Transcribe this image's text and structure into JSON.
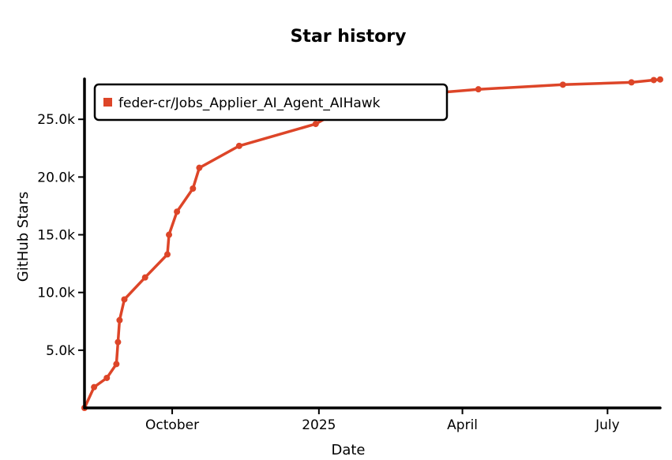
{
  "chart_data": {
    "type": "line",
    "title": "Star history",
    "xlabel": "Date",
    "ylabel": "GitHub Stars",
    "x_tick_labels": [
      "October",
      "2025",
      "April",
      "July"
    ],
    "y_tick_labels": [
      "5.0k",
      "10.0k",
      "15.0k",
      "20.0k",
      "25.0k"
    ],
    "xlim": [
      "2024-08-07",
      "2025-08-03"
    ],
    "ylim": [
      0,
      28500
    ],
    "legend_position": "top-left",
    "series": [
      {
        "name": "feder-cr/Jobs_Applier_AI_Agent_AIHawk",
        "color": "#dd4528",
        "points": [
          {
            "x": "2024-08-07",
            "y": 0
          },
          {
            "x": "2024-08-13",
            "y": 1800
          },
          {
            "x": "2024-08-21",
            "y": 2600
          },
          {
            "x": "2024-08-27",
            "y": 3800
          },
          {
            "x": "2024-08-28",
            "y": 5700
          },
          {
            "x": "2024-08-29",
            "y": 7600
          },
          {
            "x": "2024-09-01",
            "y": 9400
          },
          {
            "x": "2024-09-14",
            "y": 11300
          },
          {
            "x": "2024-09-28",
            "y": 13300
          },
          {
            "x": "2024-09-29",
            "y": 15000
          },
          {
            "x": "2024-10-04",
            "y": 17000
          },
          {
            "x": "2024-10-14",
            "y": 19000
          },
          {
            "x": "2024-10-18",
            "y": 20800
          },
          {
            "x": "2024-11-12",
            "y": 22700
          },
          {
            "x": "2024-12-30",
            "y": 24600
          },
          {
            "x": "2025-01-21",
            "y": 26300
          },
          {
            "x": "2025-02-26",
            "y": 27100
          },
          {
            "x": "2025-04-11",
            "y": 27600
          },
          {
            "x": "2025-06-03",
            "y": 28000
          },
          {
            "x": "2025-07-16",
            "y": 28200
          },
          {
            "x": "2025-07-30",
            "y": 28400
          },
          {
            "x": "2025-08-03",
            "y": 28450
          }
        ]
      }
    ]
  }
}
